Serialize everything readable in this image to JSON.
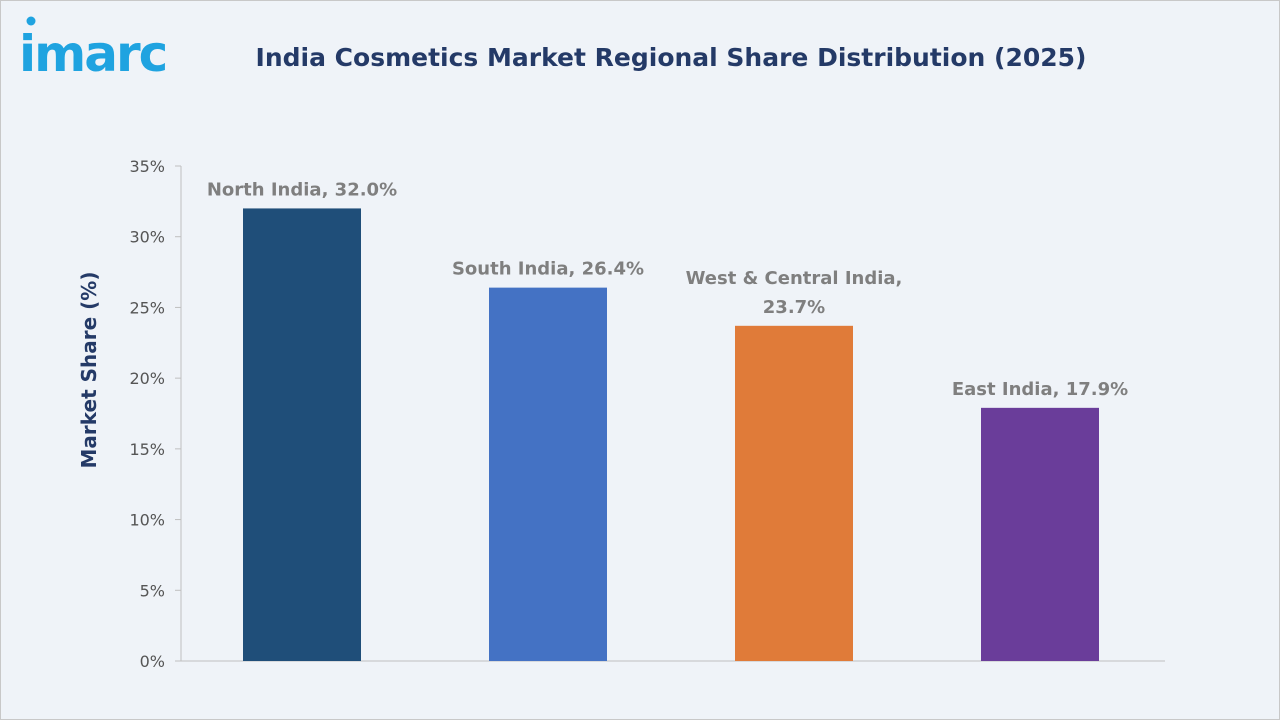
{
  "brand": {
    "logo_text": "imarc",
    "logo_color": "#1fa3e0"
  },
  "chart_data": {
    "type": "bar",
    "title": "India Cosmetics Market Regional Share Distribution (2025)",
    "xlabel": "",
    "ylabel": "Market Share (%)",
    "ylim": [
      0,
      35
    ],
    "yticks": [
      "0%",
      "5%",
      "10%",
      "15%",
      "20%",
      "25%",
      "30%",
      "35%"
    ],
    "grid": false,
    "categories": [
      "North India",
      "South India",
      "West & Central India",
      "East India"
    ],
    "values": [
      32.0,
      26.4,
      23.7,
      17.9
    ],
    "data_labels": [
      [
        "North India, 32.0%"
      ],
      [
        "South India, 26.4%"
      ],
      [
        "West & Central India,",
        "23.7%"
      ],
      [
        "East India, 17.9%"
      ]
    ],
    "colors": [
      "#1f4e79",
      "#4472c4",
      "#e07b39",
      "#6a3d9a"
    ]
  }
}
